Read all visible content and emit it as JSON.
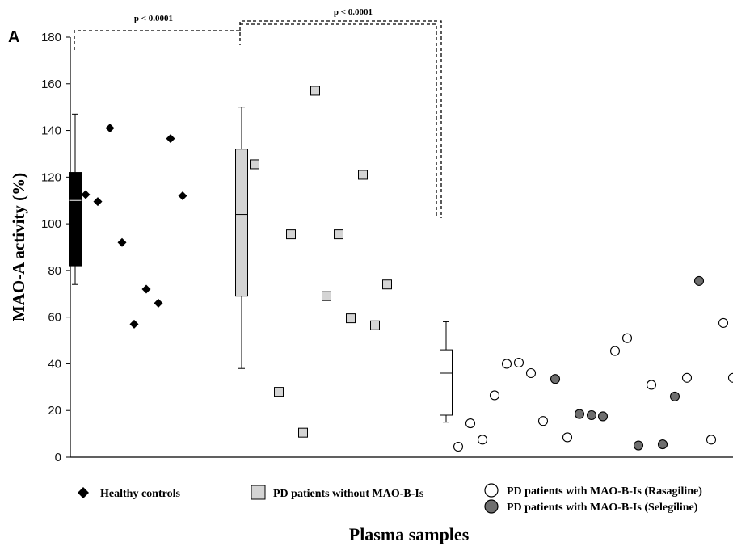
{
  "chart_data": {
    "type": "scatter",
    "panel_label": "A",
    "title": "",
    "xlabel": "Plasma samples",
    "ylabel": "MAO-A activity (%)",
    "ylim": [
      0,
      180
    ],
    "yticks": [
      "0",
      "20",
      "40",
      "60",
      "80",
      "100",
      "120",
      "140",
      "160",
      "180"
    ],
    "grid": false,
    "significance": [
      {
        "label": "p < 0.0001",
        "between": [
          "Healthy controls",
          "PD patients without MAO-B-Is"
        ]
      },
      {
        "label": "p < 0.0001",
        "between": [
          "PD patients without MAO-B-Is",
          "PD patients with MAO-B-Is"
        ]
      }
    ],
    "boxplots": [
      {
        "group": "Healthy controls",
        "min": 74,
        "q1": 82,
        "median": 110,
        "q3": 122,
        "max": 147,
        "fill": "#000000"
      },
      {
        "group": "PD patients without MAO-B-Is",
        "min": 38,
        "q1": 69,
        "median": 104,
        "q3": 132,
        "max": 150,
        "fill": "#d4d4d4"
      },
      {
        "group": "PD patients with MAO-B-Is",
        "min": 15,
        "q1": 18,
        "median": 36,
        "q3": 46,
        "max": 58,
        "fill": "#ffffff"
      }
    ],
    "series": [
      {
        "name": "Healthy controls",
        "marker": "diamond",
        "color": "#000000",
        "values": [
          112.5,
          109.5,
          141,
          92,
          57,
          72,
          66,
          136.5,
          112
        ]
      },
      {
        "name": "PD patients without MAO-B-Is",
        "marker": "square",
        "color": "#d4d4d4",
        "values": [
          125.5,
          28,
          95.5,
          10.5,
          157,
          69,
          95.5,
          59.5,
          121,
          56.5,
          74
        ]
      },
      {
        "name": "PD patients with MAO-B-Is (Rasagiline)",
        "marker": "circle-open",
        "color": "#ffffff",
        "values": [
          4.5,
          14.5,
          7.5,
          26.5,
          40,
          40.5,
          36,
          15.5,
          8.5,
          45.5,
          51,
          31,
          34,
          7.5,
          57.5,
          34
        ]
      },
      {
        "name": "PD patients with MAO-B-Is (Selegiline)",
        "marker": "circle-filled",
        "color": "#6e6e6e",
        "values": [
          33.5,
          18.5,
          18,
          17.5,
          5,
          5.5,
          26,
          75.5
        ]
      }
    ],
    "legend": [
      {
        "label": "Healthy controls",
        "marker": "diamond"
      },
      {
        "label": "PD patients without MAO-B-Is",
        "marker": "square"
      },
      {
        "label": "PD patients with MAO-B-Is (Rasagiline)",
        "marker": "circle-open"
      },
      {
        "label": "PD patients with MAO-B-Is (Selegiline)",
        "marker": "circle-filled"
      }
    ]
  }
}
